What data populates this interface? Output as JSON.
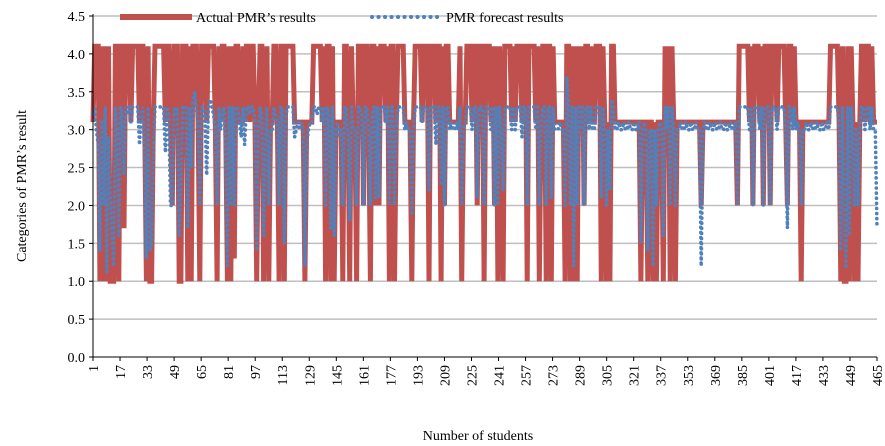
{
  "chart_data": {
    "type": "line",
    "xlabel": "Number of students",
    "ylabel": "Categories of PMR’s result",
    "xlim": [
      1,
      465
    ],
    "ylim": [
      0,
      4.5
    ],
    "y_ticks": [
      "0.0",
      "0.5",
      "1.0",
      "1.5",
      "2.0",
      "2.5",
      "3.0",
      "3.5",
      "4.0",
      "4.5"
    ],
    "x_ticks": [
      "1",
      "17",
      "33",
      "49",
      "65",
      "81",
      "97",
      "113",
      "129",
      "145",
      "161",
      "177",
      "193",
      "209",
      "225",
      "241",
      "257",
      "273",
      "289",
      "305",
      "321",
      "337",
      "353",
      "369",
      "385",
      "401",
      "417",
      "433",
      "449",
      "465"
    ],
    "grid": "horizontal",
    "legend_position": "top-left",
    "colors": {
      "actual": "#c0504d",
      "forecast": "#4f81bd",
      "grid": "#bfbfbf"
    },
    "series": [
      {
        "name": "Actual PMR’s results",
        "style": "solid",
        "values": [
          3.1,
          4.1,
          4.1,
          4.1,
          1.0,
          4.1,
          1.0,
          4.1,
          1.0,
          4.1,
          1.0,
          1.0,
          1.0,
          4.1,
          4.1,
          1.0,
          4.1,
          4.1,
          1.7,
          4.1,
          4.1,
          4.1,
          3.1,
          4.1,
          4.1,
          4.1,
          4.1,
          3.1,
          4.1,
          4.1,
          3.1,
          1.0,
          4.1,
          1.0,
          1.0,
          3.1,
          4.1,
          4.1,
          4.1,
          4.1,
          4.1,
          4.1,
          3.1,
          4.1,
          4.1,
          3.1,
          2.0,
          4.1,
          4.1,
          4.1,
          1.0,
          1.0,
          4.1,
          4.1,
          4.1,
          1.0,
          4.1,
          1.0,
          4.1,
          4.1,
          4.1,
          3.1,
          1.0,
          4.1,
          4.1,
          4.1,
          3.1,
          4.1,
          4.1,
          4.1,
          4.1,
          3.1,
          1.0,
          4.1,
          3.1,
          4.1,
          4.1,
          3.1,
          1.0,
          4.1,
          1.0,
          4.1,
          1.3,
          4.1,
          4.1,
          3.1,
          3.1,
          4.1,
          3.1,
          4.1,
          4.1,
          3.1,
          4.1,
          4.1,
          3.1,
          1.0,
          3.1,
          4.1,
          4.1,
          1.0,
          3.1,
          4.1,
          1.0,
          3.1,
          3.1,
          4.1,
          4.1,
          3.1,
          1.0,
          4.1,
          4.1,
          1.0,
          4.1,
          4.1,
          4.1,
          4.1,
          4.1,
          3.1,
          3.1,
          3.1,
          3.1,
          3.1,
          3.1,
          1.0,
          3.1,
          3.1,
          3.1,
          3.1,
          4.1,
          4.1,
          4.1,
          4.1,
          4.1,
          3.1,
          4.1,
          1.0,
          4.1,
          4.1,
          1.0,
          4.1,
          1.0,
          3.1,
          3.1,
          3.1,
          3.1,
          1.0,
          4.1,
          4.1,
          3.1,
          1.0,
          4.1,
          3.1,
          3.1,
          1.0,
          4.1,
          4.1,
          4.1,
          2.0,
          4.1,
          4.1,
          3.1,
          1.0,
          4.1,
          4.1,
          2.0,
          4.1,
          2.0,
          4.1,
          4.1,
          4.1,
          3.1,
          4.1,
          1.0,
          4.1,
          4.1,
          1.0,
          3.1,
          4.1,
          4.1,
          4.1,
          4.1,
          3.1,
          3.1,
          3.1,
          3.1,
          1.0,
          3.1,
          4.1,
          4.1,
          4.1,
          4.1,
          3.1,
          4.1,
          4.1,
          4.1,
          1.0,
          4.1,
          4.1,
          4.1,
          3.1,
          4.1,
          4.1,
          1.0,
          4.1,
          2.0,
          4.1,
          4.1,
          3.1,
          3.1,
          3.1,
          3.1,
          3.1,
          3.1,
          4.1,
          1.0,
          3.1,
          3.1,
          4.1,
          4.1,
          4.1,
          3.1,
          4.1,
          4.1,
          2.0,
          4.1,
          4.1,
          4.1,
          1.0,
          4.1,
          4.1,
          4.1,
          3.1,
          4.1,
          2.0,
          4.1,
          1.0,
          4.1,
          3.1,
          1.0,
          4.1,
          4.1,
          4.1,
          4.1,
          3.1,
          4.1,
          3.1,
          4.1,
          4.1,
          4.1,
          3.1,
          4.1,
          4.1,
          1.0,
          4.1,
          4.1,
          4.1,
          4.1,
          3.1,
          4.1,
          1.0,
          3.1,
          4.1,
          4.1,
          1.0,
          4.1,
          4.1,
          1.0,
          4.1,
          3.1,
          3.1,
          3.1,
          3.1,
          3.1,
          3.1,
          1.0,
          4.1,
          4.1,
          1.0,
          4.1,
          1.0,
          4.1,
          1.0,
          4.1,
          3.1,
          4.1,
          2.0,
          4.1,
          4.1,
          3.1,
          4.1,
          3.1,
          3.1,
          4.1,
          4.1,
          4.1,
          1.0,
          4.1,
          3.1,
          1.0,
          3.1,
          1.0,
          4.1,
          4.1,
          3.1,
          3.1,
          3.1,
          3.1,
          3.1,
          3.1,
          3.1,
          3.1,
          3.1,
          3.1,
          3.1,
          3.1,
          3.1,
          3.1,
          3.1,
          1.0,
          3.1,
          3.1,
          3.1,
          1.0,
          3.1,
          3.1,
          1.0,
          3.1,
          1.0,
          3.1,
          3.1,
          3.1,
          1.0,
          4.1,
          3.1,
          4.1,
          1.0,
          4.1,
          3.1,
          1.0,
          3.1,
          3.1,
          3.1,
          3.1,
          3.1,
          3.1,
          3.1,
          3.1,
          3.1,
          3.1,
          3.1,
          3.1,
          3.1,
          3.1,
          2.0,
          3.1,
          3.1,
          3.1,
          3.1,
          3.1,
          3.1,
          3.1,
          3.1,
          3.1,
          3.1,
          3.1,
          3.1,
          3.1,
          3.1,
          3.1,
          3.1,
          3.1,
          3.1,
          3.1,
          3.1,
          2.0,
          4.1,
          4.1,
          4.1,
          4.1,
          4.1,
          4.1,
          3.1,
          4.1,
          2.0,
          4.1,
          4.1,
          4.1,
          3.1,
          4.1,
          2.0,
          4.1,
          4.1,
          4.1,
          2.0,
          4.1,
          4.1,
          4.1,
          3.1,
          4.1,
          4.1,
          4.1,
          4.1,
          3.1,
          2.0,
          4.1,
          4.1,
          3.1,
          4.1,
          3.1,
          3.1,
          3.1,
          1.0,
          3.1,
          3.1,
          3.1,
          3.1,
          3.1,
          3.1,
          3.1,
          3.1,
          3.1,
          3.1,
          3.1,
          3.1,
          3.1,
          3.1,
          3.1,
          3.1,
          4.1,
          4.1,
          4.1,
          4.1,
          4.1,
          3.1,
          1.0,
          4.1,
          1.0,
          1.0,
          4.1,
          1.0,
          4.1,
          3.1,
          1.0,
          3.1,
          1.0,
          3.1,
          4.1,
          4.1,
          3.1,
          4.1,
          4.1,
          3.1,
          4.1,
          3.1,
          3.1,
          3.1
        ]
      },
      {
        "name": "PMR forecast results",
        "style": "dotted",
        "values": [
          3.2,
          3.3,
          3.0,
          2.8,
          1.4,
          3.1,
          2.0,
          3.3,
          1.1,
          2.9,
          2.2,
          1.6,
          1.2,
          3.3,
          3.0,
          1.6,
          3.3,
          3.2,
          2.4,
          3.3,
          3.2,
          3.3,
          3.1,
          3.3,
          3.3,
          3.3,
          3.3,
          2.8,
          3.2,
          3.3,
          2.6,
          1.3,
          3.3,
          1.4,
          1.5,
          2.7,
          3.3,
          3.3,
          3.3,
          3.3,
          3.3,
          3.3,
          2.7,
          3.3,
          3.2,
          2.0,
          2.0,
          3.3,
          3.2,
          3.3,
          1.6,
          2.2,
          3.3,
          3.3,
          3.3,
          1.7,
          3.3,
          2.5,
          3.4,
          3.5,
          3.3,
          3.0,
          2.0,
          3.3,
          3.3,
          3.2,
          2.4,
          3.3,
          3.4,
          3.3,
          3.2,
          3.0,
          2.0,
          3.3,
          3.0,
          3.2,
          3.3,
          2.7,
          1.2,
          3.3,
          2.0,
          3.3,
          2.0,
          3.3,
          3.3,
          3.1,
          2.9,
          3.3,
          2.8,
          3.3,
          3.3,
          3.2,
          3.3,
          3.3,
          3.1,
          1.4,
          3.0,
          3.3,
          3.2,
          1.6,
          2.8,
          3.3,
          2.0,
          3.0,
          3.0,
          3.3,
          3.2,
          3.1,
          2.0,
          3.3,
          3.3,
          1.5,
          3.2,
          3.3,
          3.3,
          3.3,
          3.3,
          2.9,
          3.0,
          3.1,
          3.0,
          3.1,
          3.0,
          1.2,
          2.8,
          3.0,
          3.1,
          3.1,
          3.3,
          3.3,
          3.2,
          3.3,
          3.3,
          3.1,
          3.3,
          2.0,
          3.3,
          3.2,
          1.7,
          3.3,
          1.6,
          3.0,
          3.1,
          2.9,
          3.0,
          2.0,
          3.3,
          3.3,
          2.9,
          1.8,
          3.3,
          3.0,
          3.0,
          2.0,
          3.3,
          3.3,
          3.2,
          2.0,
          3.3,
          3.3,
          3.0,
          2.0,
          3.2,
          3.3,
          2.1,
          3.3,
          2.1,
          3.3,
          3.3,
          3.3,
          3.1,
          3.3,
          2.0,
          3.3,
          3.3,
          2.0,
          3.0,
          3.3,
          3.3,
          3.3,
          3.3,
          3.0,
          3.1,
          3.0,
          3.0,
          1.9,
          3.0,
          3.3,
          3.3,
          3.3,
          3.3,
          3.1,
          3.3,
          3.3,
          3.3,
          2.2,
          3.3,
          3.3,
          3.3,
          2.8,
          3.3,
          3.3,
          2.3,
          3.3,
          2.0,
          3.3,
          3.3,
          3.0,
          3.1,
          3.0,
          3.0,
          3.1,
          3.0,
          3.3,
          2.0,
          3.0,
          3.1,
          3.3,
          3.3,
          3.3,
          3.0,
          3.3,
          3.3,
          2.1,
          3.3,
          3.3,
          3.3,
          2.0,
          3.3,
          3.3,
          3.3,
          3.0,
          3.3,
          2.0,
          3.3,
          2.0,
          3.3,
          3.0,
          2.2,
          3.3,
          3.3,
          3.3,
          3.3,
          3.0,
          3.3,
          3.0,
          3.3,
          3.3,
          3.3,
          2.9,
          3.3,
          3.3,
          2.0,
          3.3,
          3.3,
          3.3,
          3.3,
          3.0,
          3.3,
          2.0,
          3.1,
          3.3,
          3.3,
          2.0,
          3.3,
          3.3,
          2.1,
          3.3,
          3.0,
          3.0,
          3.0,
          3.1,
          3.0,
          3.0,
          2.0,
          3.7,
          3.3,
          2.0,
          3.3,
          1.2,
          3.3,
          2.0,
          3.3,
          3.0,
          3.3,
          2.0,
          3.3,
          3.3,
          3.0,
          3.3,
          3.0,
          3.0,
          3.3,
          3.3,
          3.3,
          2.1,
          3.3,
          3.0,
          2.0,
          3.0,
          2.2,
          3.4,
          3.3,
          3.0,
          3.0,
          3.1,
          3.0,
          3.0,
          3.1,
          3.0,
          3.0,
          3.1,
          3.0,
          3.0,
          3.1,
          3.0,
          3.0,
          3.1,
          1.5,
          3.0,
          3.1,
          3.0,
          1.4,
          3.0,
          3.0,
          1.2,
          3.0,
          2.0,
          3.0,
          3.1,
          3.0,
          1.6,
          3.3,
          3.0,
          3.3,
          2.0,
          3.3,
          3.0,
          2.0,
          3.0,
          3.0,
          3.1,
          3.0,
          3.0,
          3.1,
          3.0,
          3.0,
          3.1,
          3.0,
          3.0,
          3.1,
          3.0,
          3.0,
          1.2,
          3.0,
          3.1,
          3.0,
          3.0,
          3.1,
          3.0,
          3.0,
          3.1,
          3.0,
          3.0,
          3.1,
          3.0,
          3.0,
          3.1,
          3.0,
          3.0,
          3.1,
          3.0,
          3.0,
          3.1,
          2.0,
          3.3,
          3.3,
          3.3,
          3.3,
          3.3,
          3.3,
          3.0,
          3.3,
          2.0,
          3.3,
          3.3,
          3.3,
          3.0,
          3.3,
          2.0,
          3.3,
          3.3,
          3.3,
          2.0,
          3.3,
          3.3,
          3.3,
          3.0,
          3.3,
          3.3,
          3.3,
          3.3,
          3.0,
          1.7,
          3.3,
          3.3,
          3.0,
          3.3,
          3.0,
          3.1,
          3.0,
          2.0,
          3.0,
          3.0,
          3.1,
          3.0,
          3.0,
          3.1,
          3.0,
          3.0,
          3.1,
          3.0,
          3.0,
          3.1,
          3.0,
          3.0,
          3.1,
          3.0,
          3.3,
          3.3,
          3.3,
          3.3,
          3.3,
          3.0,
          1.4,
          3.3,
          2.0,
          1.2,
          3.3,
          1.6,
          3.3,
          3.0,
          2.0,
          3.0,
          2.0,
          3.0,
          3.3,
          3.3,
          3.0,
          3.3,
          3.3,
          3.0,
          3.3,
          3.0,
          3.0,
          1.7
        ]
      }
    ]
  }
}
